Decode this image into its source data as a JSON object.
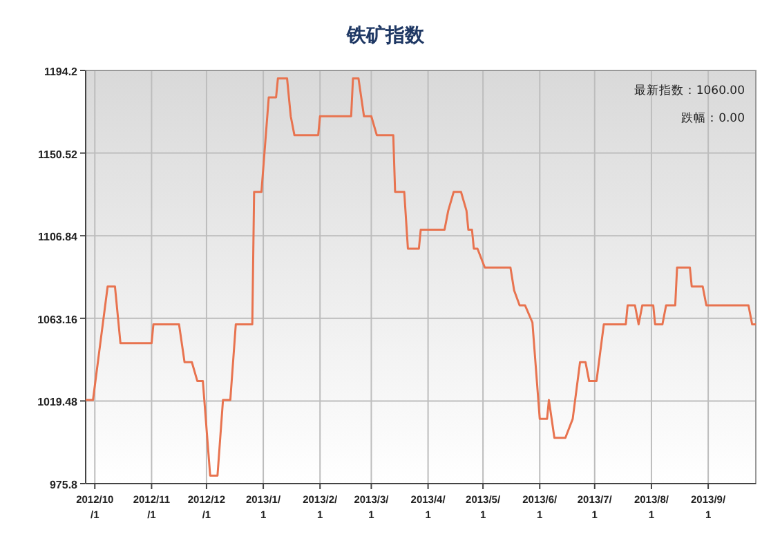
{
  "chart_data": {
    "type": "line",
    "title": "铁矿指数",
    "annotations": [
      "最新指数：1060.00",
      "跌幅：0.00"
    ],
    "x": [
      "2012-09-26",
      "2012-09-30",
      "2012-10-08",
      "2012-10-12",
      "2012-10-15",
      "2012-11-01",
      "2012-11-02",
      "2012-11-16",
      "2012-11-19",
      "2012-11-23",
      "2012-11-26",
      "2012-11-29",
      "2012-12-03",
      "2012-12-07",
      "2012-12-10",
      "2012-12-14",
      "2012-12-17",
      "2012-12-26",
      "2012-12-27",
      "2012-12-31",
      "2013-01-04",
      "2013-01-08",
      "2013-01-09",
      "2013-01-14",
      "2013-01-16",
      "2013-01-18",
      "2013-01-31",
      "2013-02-01",
      "2013-02-18",
      "2013-02-19",
      "2013-02-22",
      "2013-02-25",
      "2013-03-01",
      "2013-03-04",
      "2013-03-13",
      "2013-03-14",
      "2013-03-19",
      "2013-03-21",
      "2013-03-27",
      "2013-03-28",
      "2013-04-10",
      "2013-04-12",
      "2013-04-15",
      "2013-04-19",
      "2013-04-22",
      "2013-04-23",
      "2013-04-25",
      "2013-04-26",
      "2013-04-28",
      "2013-05-02",
      "2013-05-16",
      "2013-05-18",
      "2013-05-21",
      "2013-05-24",
      "2013-05-28",
      "2013-06-01",
      "2013-06-05",
      "2013-06-06",
      "2013-06-09",
      "2013-06-15",
      "2013-06-19",
      "2013-06-23",
      "2013-06-26",
      "2013-06-28",
      "2013-07-02",
      "2013-07-06",
      "2013-07-18",
      "2013-07-19",
      "2013-07-23",
      "2013-07-25",
      "2013-07-27",
      "2013-08-02",
      "2013-08-03",
      "2013-08-07",
      "2013-08-09",
      "2013-08-14",
      "2013-08-15",
      "2013-08-22",
      "2013-08-23",
      "2013-08-29",
      "2013-08-31",
      "2013-09-23",
      "2013-09-25",
      "2013-09-27"
    ],
    "series": [
      {
        "color": "#e8734f",
        "values": [
          1020,
          1020,
          1080,
          1080,
          1050,
          1050,
          1060,
          1060,
          1040,
          1040,
          1030,
          1030,
          980,
          980,
          1020,
          1020,
          1060,
          1060,
          1130,
          1130,
          1180,
          1180,
          1190,
          1190,
          1170,
          1160,
          1160,
          1170,
          1170,
          1190,
          1190,
          1170,
          1170,
          1160,
          1160,
          1130,
          1130,
          1100,
          1100,
          1110,
          1110,
          1120,
          1130,
          1130,
          1120,
          1110,
          1110,
          1100,
          1100,
          1090,
          1090,
          1078,
          1070,
          1070,
          1061,
          1010,
          1010,
          1020,
          1000,
          1000,
          1010,
          1040,
          1040,
          1030,
          1030,
          1060,
          1060,
          1070,
          1070,
          1060,
          1070,
          1070,
          1060,
          1060,
          1070,
          1070,
          1090,
          1090,
          1080,
          1080,
          1070,
          1070,
          1060,
          1060
        ]
      }
    ],
    "xlim": [
      "2012-09-26",
      "2013-09-27"
    ],
    "xticks": [
      {
        "value": "2012-10-01",
        "label": "2012/10/1"
      },
      {
        "value": "2012-11-01",
        "label": "2012/11/1"
      },
      {
        "value": "2012-12-01",
        "label": "2012/12/1"
      },
      {
        "value": "2013-01-01",
        "label": "2013/1/1"
      },
      {
        "value": "2013-02-01",
        "label": "2013/2/1"
      },
      {
        "value": "2013-03-01",
        "label": "2013/3/1"
      },
      {
        "value": "2013-04-01",
        "label": "2013/4/1"
      },
      {
        "value": "2013-05-01",
        "label": "2013/5/1"
      },
      {
        "value": "2013-06-01",
        "label": "2013/6/1"
      },
      {
        "value": "2013-07-01",
        "label": "2013/7/1"
      },
      {
        "value": "2013-08-01",
        "label": "2013/8/1"
      },
      {
        "value": "2013-09-01",
        "label": "2013/9/1"
      }
    ],
    "ylim": [
      975.8,
      1194.2
    ],
    "yticks": [
      975.8,
      1019.48,
      1063.16,
      1106.84,
      1150.52,
      1194.2
    ],
    "grid": true,
    "marker": "none",
    "line_style": "solid"
  }
}
